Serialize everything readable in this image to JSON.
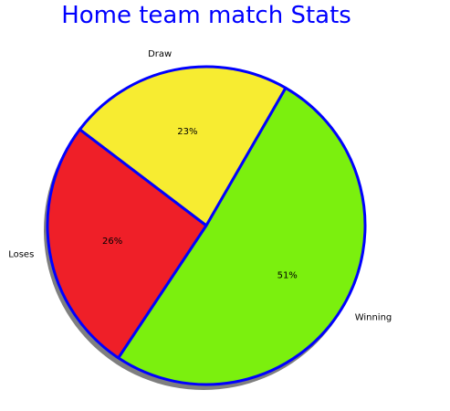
{
  "chart_data": {
    "type": "pie",
    "title": "Home team match Stats",
    "title_color": "#0000ff",
    "categories": [
      "Draw",
      "Loses",
      "Winning"
    ],
    "values": [
      23,
      26,
      51
    ],
    "value_labels": [
      "23%",
      "26%",
      "51%"
    ],
    "colors": [
      "#f7ec31",
      "#ef1f28",
      "#7bf00e"
    ],
    "edge_color": "#0000ff",
    "shadow": true,
    "start_angle_deg": 60,
    "direction": "counterclockwise",
    "legend": "none",
    "grid": false
  }
}
